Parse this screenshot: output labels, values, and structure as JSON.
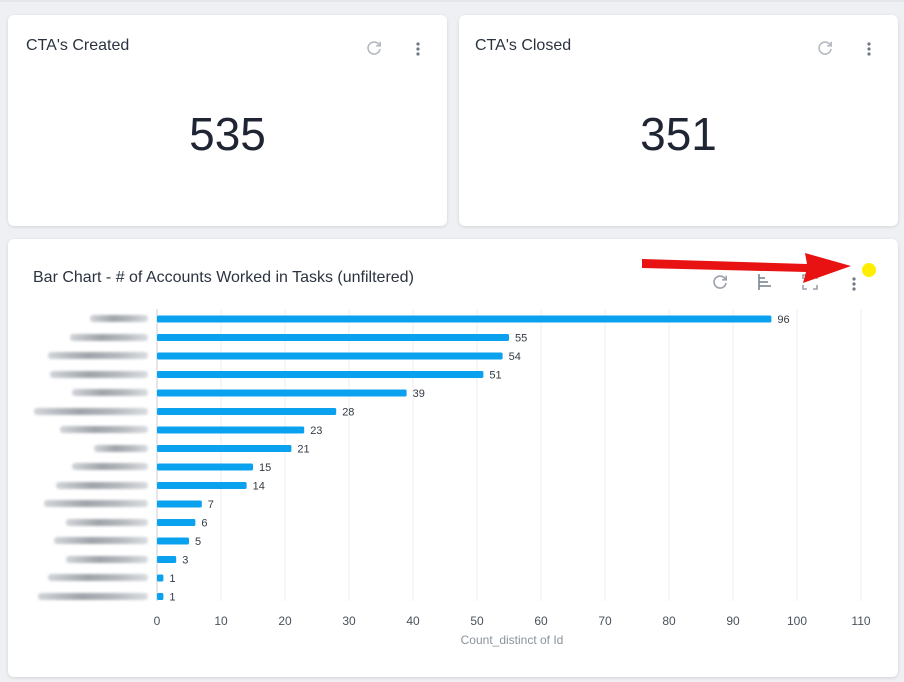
{
  "cards": [
    {
      "title": "CTA's Created",
      "value": "535"
    },
    {
      "title": "CTA's Closed",
      "value": "351"
    }
  ],
  "chart_card": {
    "title": "Bar Chart - # of Accounts Worked in Tasks (unfiltered)"
  },
  "icons": {
    "refresh": "refresh-icon",
    "more": "more-vertical-icon",
    "sort": "sort-bars-icon",
    "expand": "expand-icon",
    "annotation_arrow": "red-arrow-annotation",
    "highlight_dot": "yellow-dot-highlight"
  },
  "colors": {
    "bar": "#0aa2ef",
    "arrow": "#e81212",
    "dot": "#ffee00"
  },
  "chart_data": {
    "type": "bar",
    "orientation": "horizontal",
    "categories_blurred": true,
    "values": [
      96,
      55,
      54,
      51,
      39,
      28,
      23,
      21,
      15,
      14,
      7,
      6,
      5,
      3,
      1,
      1
    ],
    "xlabel": "Count_distinct of Id",
    "xlim": [
      0,
      110
    ],
    "xticks": [
      0,
      10,
      20,
      30,
      40,
      50,
      60,
      70,
      80,
      90,
      100,
      110
    ],
    "grid": true
  }
}
